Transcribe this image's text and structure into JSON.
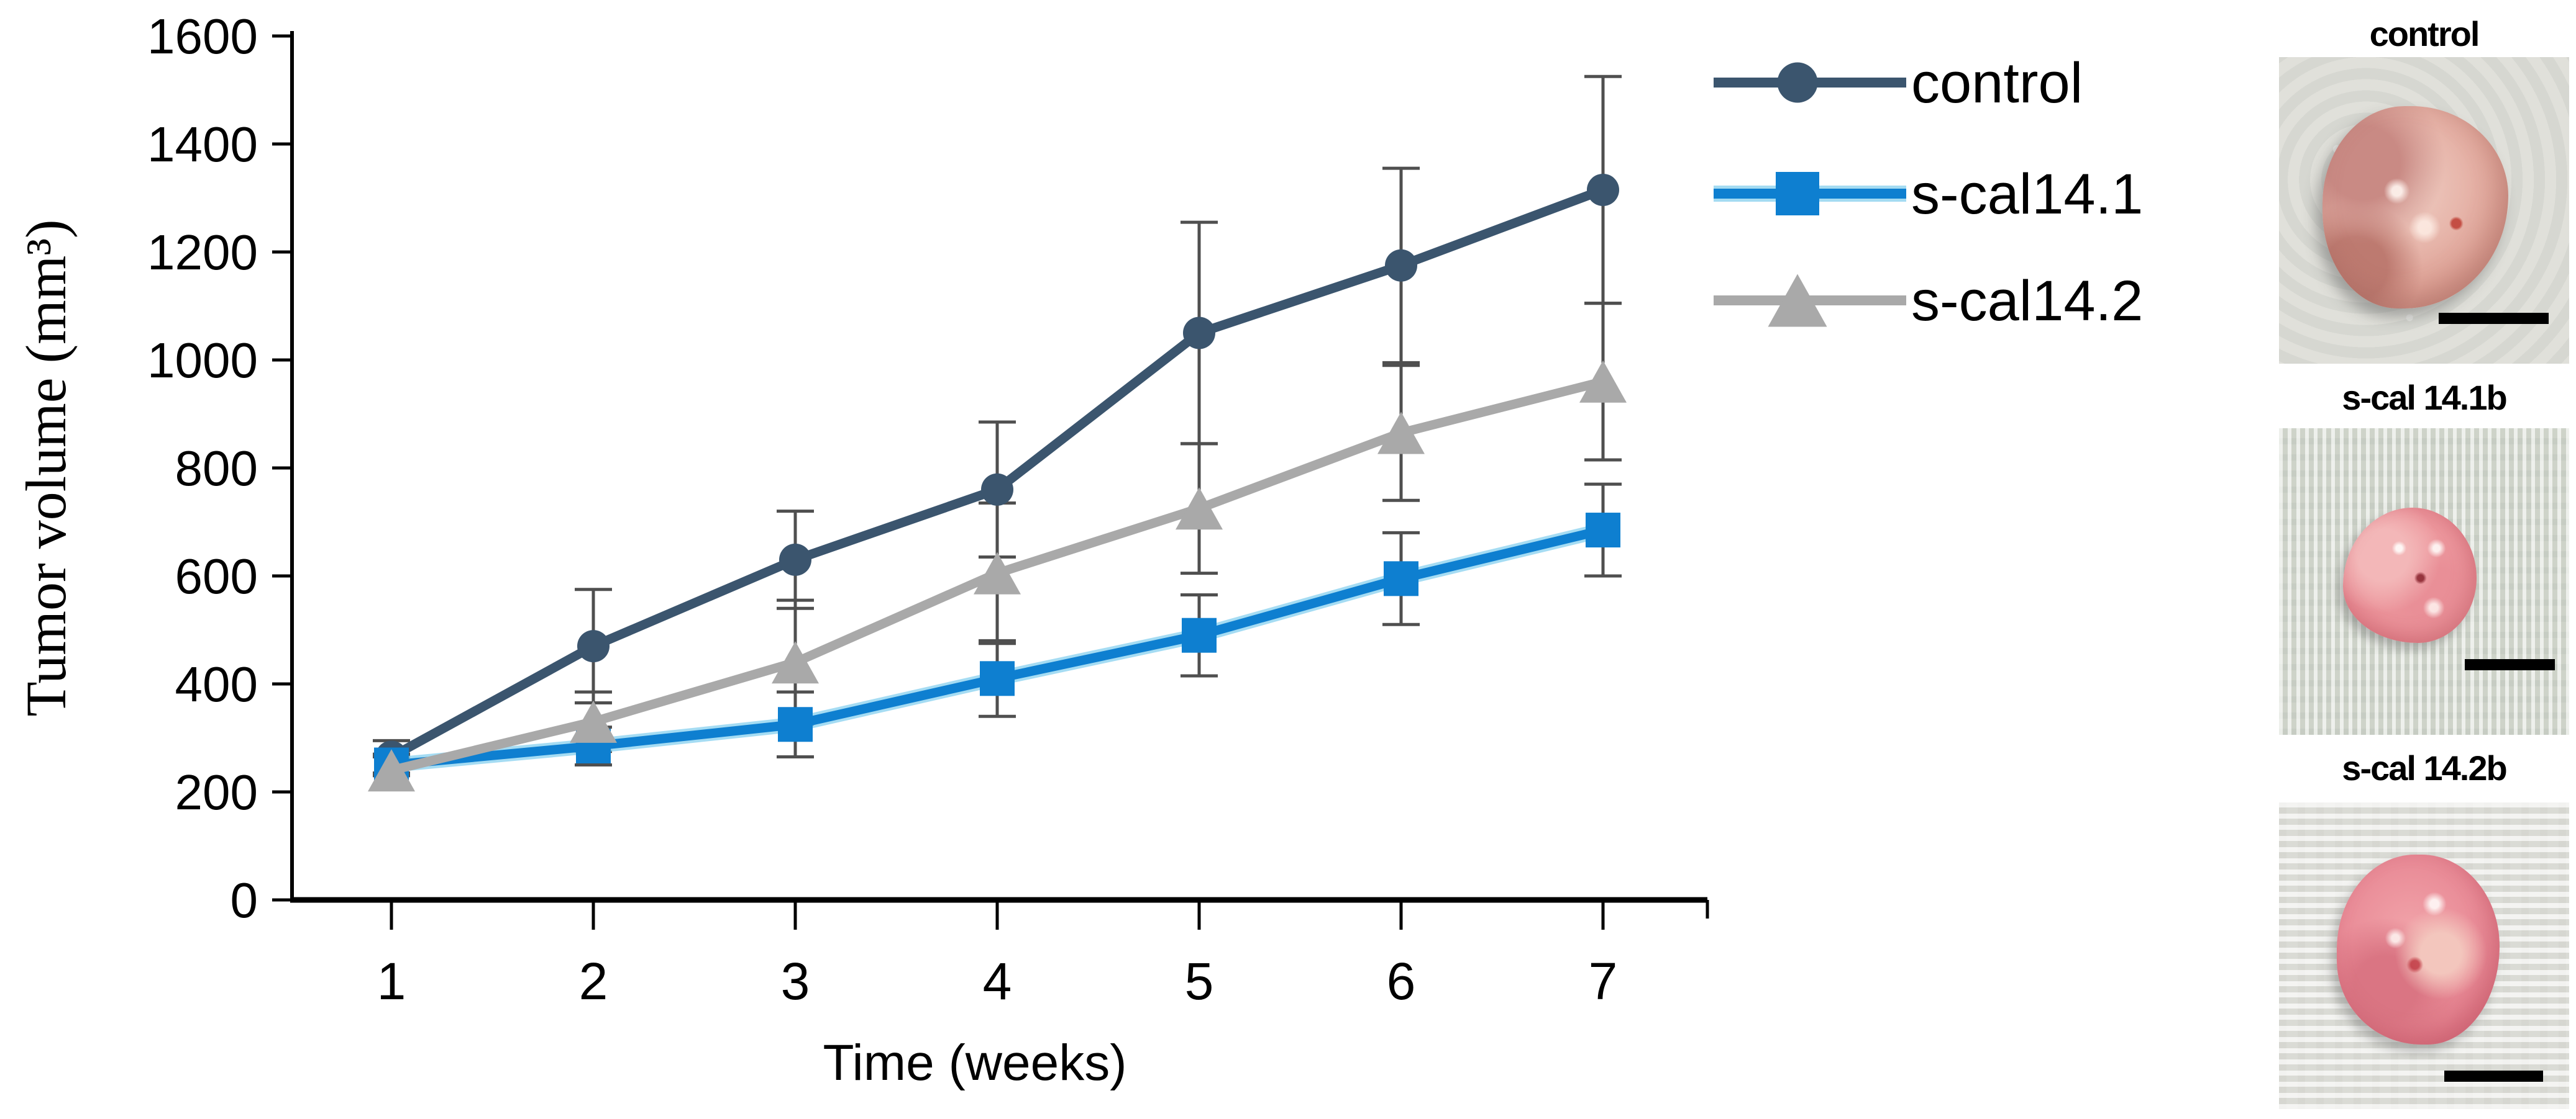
{
  "chart_data": {
    "type": "line",
    "x": [
      1,
      2,
      3,
      4,
      5,
      6,
      7
    ],
    "x_tick_labels": [
      "1",
      "2",
      "3",
      "4",
      "5",
      "6",
      "7"
    ],
    "xlabel": "Time (weeks)",
    "ylabel": "Tumor volume (mm³)",
    "ylim": [
      0,
      1600
    ],
    "ytick_step": 200,
    "ytick_labels": [
      "0",
      "200",
      "400",
      "600",
      "800",
      "1000",
      "1200",
      "1400",
      "1600"
    ],
    "grid": false,
    "legend_position": "right",
    "axis_color": "#000000",
    "error_bar_color": "#4f4f4f",
    "series": [
      {
        "name": "control",
        "marker": "circle",
        "color": "#3b556e",
        "values": [
          265,
          470,
          630,
          760,
          1050,
          1175,
          1315
        ],
        "errors": [
          30,
          105,
          90,
          125,
          205,
          180,
          210
        ]
      },
      {
        "name": "s-cal14.1b",
        "marker": "square",
        "color": "#0e7fd0",
        "halo_color": "#8ed3f0",
        "values": [
          250,
          285,
          325,
          410,
          490,
          595,
          685
        ],
        "errors": [
          20,
          35,
          60,
          70,
          75,
          85,
          85
        ]
      },
      {
        "name": "s-cal14.2b",
        "marker": "triangle",
        "color": "#a9a9a9",
        "values": [
          240,
          330,
          440,
          605,
          725,
          865,
          960
        ],
        "errors": [
          25,
          55,
          115,
          130,
          120,
          125,
          145
        ]
      }
    ]
  },
  "photos": [
    {
      "label": "control"
    },
    {
      "label": "s-cal 14.1b"
    },
    {
      "label": "s-cal 14.2b"
    }
  ]
}
